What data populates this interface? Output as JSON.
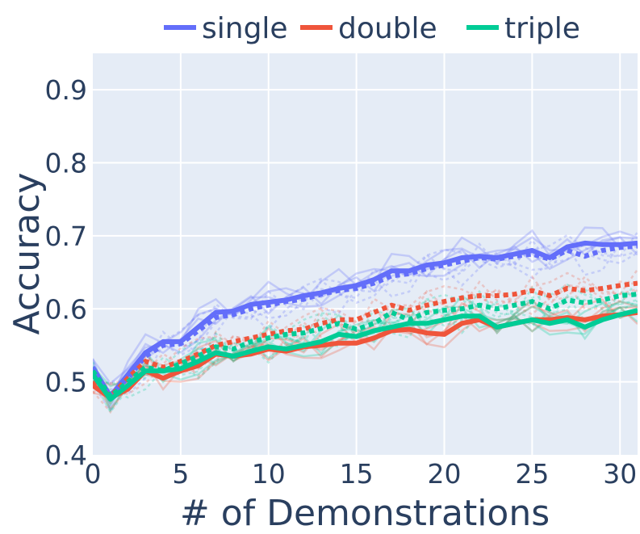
{
  "chart_data": {
    "type": "line",
    "title": "",
    "xlabel": "# of Demonstrations",
    "ylabel": "Accuracy",
    "xlim": [
      0,
      31
    ],
    "ylim": [
      0.4,
      0.95
    ],
    "x_ticks": [
      0,
      5,
      10,
      15,
      20,
      25,
      30
    ],
    "y_ticks": [
      0.4,
      0.5,
      0.6,
      0.7,
      0.8,
      0.9
    ],
    "x_tick_labels": [
      "0",
      "5",
      "10",
      "15",
      "20",
      "25",
      "30"
    ],
    "y_tick_labels": [
      "0.4",
      "0.5",
      "0.6",
      "0.7",
      "0.8",
      "0.9"
    ],
    "grid": true,
    "legend_position": "top",
    "plot_background": "#e5ecf6",
    "x": [
      0,
      1,
      2,
      3,
      4,
      5,
      6,
      7,
      8,
      9,
      10,
      11,
      12,
      13,
      14,
      15,
      16,
      17,
      18,
      19,
      20,
      21,
      22,
      23,
      24,
      25,
      26,
      27,
      28,
      29,
      30,
      31
    ],
    "series": [
      {
        "name": "single",
        "color": "#636efa",
        "solid": [
          0.52,
          0.48,
          0.51,
          0.54,
          0.555,
          0.555,
          0.575,
          0.595,
          0.597,
          0.606,
          0.609,
          0.612,
          0.618,
          0.622,
          0.628,
          0.632,
          0.64,
          0.652,
          0.652,
          0.66,
          0.663,
          0.67,
          0.672,
          0.67,
          0.675,
          0.68,
          0.67,
          0.685,
          0.69,
          0.688,
          0.688,
          0.69
        ],
        "dotted": [
          0.51,
          0.482,
          0.505,
          0.535,
          0.55,
          0.552,
          0.57,
          0.588,
          0.592,
          0.6,
          0.605,
          0.61,
          0.613,
          0.62,
          0.625,
          0.628,
          0.635,
          0.645,
          0.648,
          0.655,
          0.66,
          0.665,
          0.67,
          0.668,
          0.672,
          0.675,
          0.668,
          0.68,
          0.672,
          0.68,
          0.684,
          0.686
        ]
      },
      {
        "name": "double",
        "color": "#ef553b",
        "solid": [
          0.495,
          0.478,
          0.49,
          0.515,
          0.505,
          0.515,
          0.522,
          0.538,
          0.535,
          0.538,
          0.545,
          0.542,
          0.548,
          0.55,
          0.553,
          0.553,
          0.56,
          0.57,
          0.572,
          0.567,
          0.565,
          0.58,
          0.585,
          0.575,
          0.58,
          0.585,
          0.585,
          0.588,
          0.585,
          0.59,
          0.592,
          0.595
        ],
        "dotted": [
          0.5,
          0.48,
          0.505,
          0.528,
          0.52,
          0.528,
          0.538,
          0.55,
          0.555,
          0.56,
          0.565,
          0.57,
          0.572,
          0.58,
          0.585,
          0.585,
          0.595,
          0.605,
          0.598,
          0.605,
          0.61,
          0.615,
          0.618,
          0.618,
          0.62,
          0.625,
          0.618,
          0.628,
          0.625,
          0.628,
          0.632,
          0.635
        ]
      },
      {
        "name": "triple",
        "color": "#00cc96",
        "solid": [
          0.51,
          0.476,
          0.495,
          0.515,
          0.515,
          0.518,
          0.528,
          0.54,
          0.535,
          0.542,
          0.548,
          0.545,
          0.55,
          0.555,
          0.565,
          0.562,
          0.57,
          0.575,
          0.58,
          0.58,
          0.585,
          0.59,
          0.59,
          0.575,
          0.58,
          0.585,
          0.58,
          0.585,
          0.575,
          0.585,
          0.592,
          0.598
        ],
        "dotted": [
          0.515,
          0.48,
          0.5,
          0.52,
          0.515,
          0.525,
          0.535,
          0.548,
          0.545,
          0.555,
          0.56,
          0.565,
          0.567,
          0.573,
          0.58,
          0.572,
          0.58,
          0.595,
          0.585,
          0.595,
          0.598,
          0.6,
          0.605,
          0.6,
          0.605,
          0.61,
          0.6,
          0.612,
          0.608,
          0.612,
          0.618,
          0.62
        ]
      }
    ]
  }
}
